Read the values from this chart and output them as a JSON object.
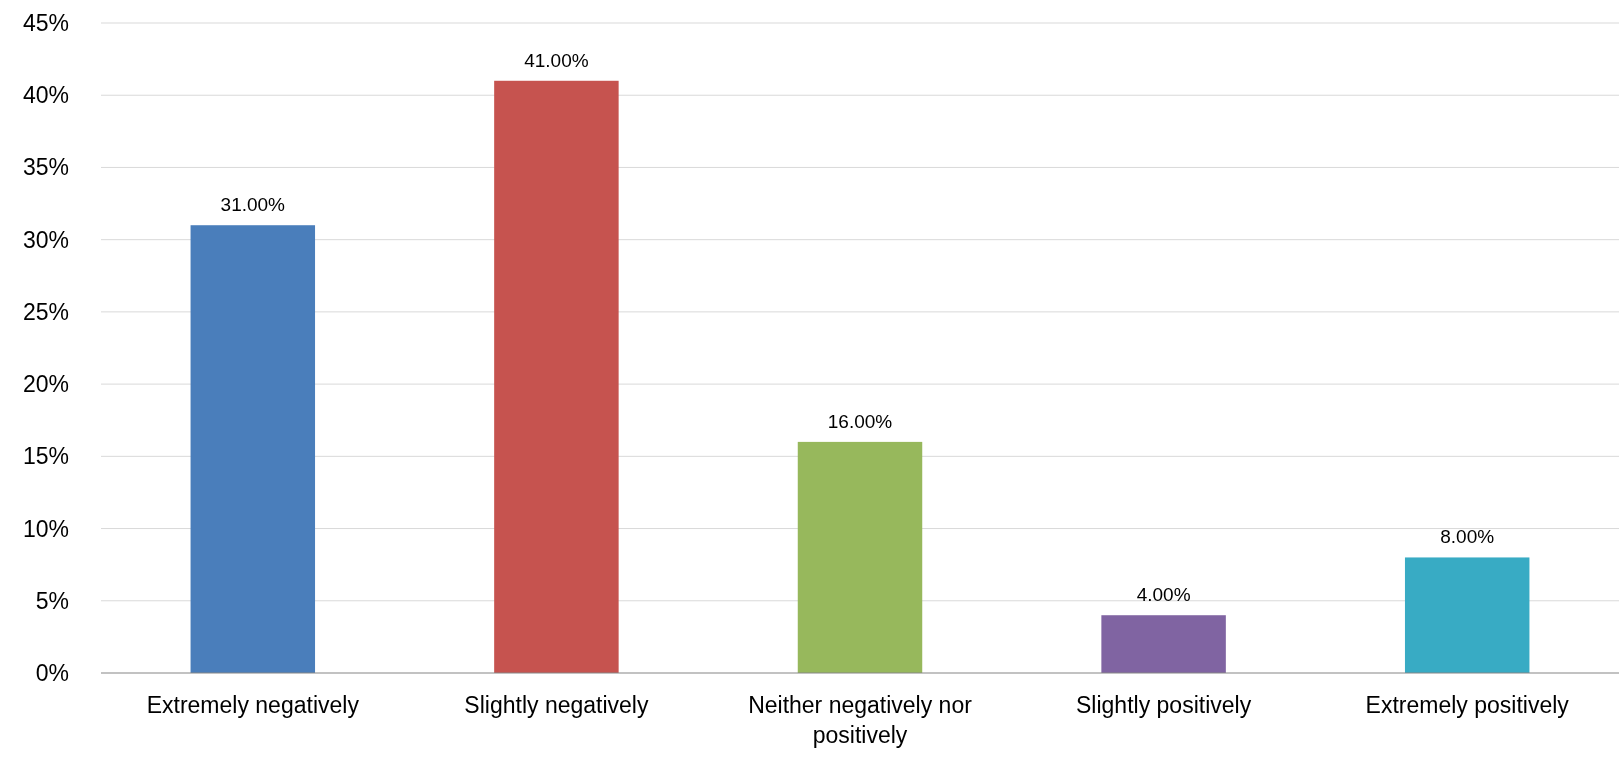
{
  "chart_data": {
    "type": "bar",
    "categories": [
      "Extremely negatively",
      "Slightly negatively",
      "Neither negatively nor positively",
      "Slightly positively",
      "Extremely positively"
    ],
    "values": [
      31,
      41,
      16,
      4,
      8
    ],
    "colors": [
      "#4a7ebb",
      "#c6534f",
      "#97b85c",
      "#8064a2",
      "#38abc4"
    ],
    "value_labels": [
      "31.00%",
      "41.00%",
      "16.00%",
      "4.00%",
      "8.00%"
    ],
    "ylim": [
      0,
      45
    ],
    "yticks": [
      {
        "value": 0,
        "label": "0%"
      },
      {
        "value": 5,
        "label": "5%"
      },
      {
        "value": 10,
        "label": "10%"
      },
      {
        "value": 15,
        "label": "15%"
      },
      {
        "value": 20,
        "label": "20%"
      },
      {
        "value": 25,
        "label": "25%"
      },
      {
        "value": 30,
        "label": "30%"
      },
      {
        "value": 35,
        "label": "35%"
      },
      {
        "value": 40,
        "label": "40%"
      },
      {
        "value": 45,
        "label": "45%"
      }
    ],
    "grid": "y"
  }
}
